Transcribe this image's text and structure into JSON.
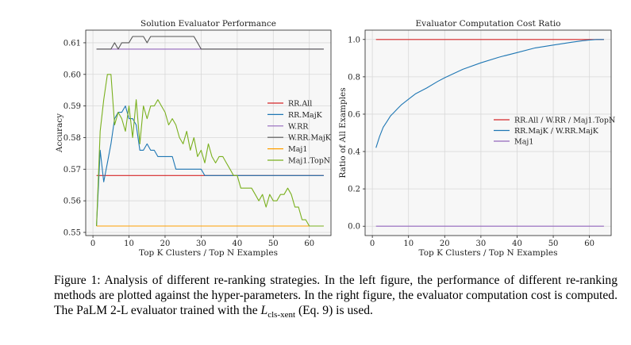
{
  "chart_data": [
    {
      "type": "line",
      "title": "Solution Evaluator Performance",
      "xlabel": "Top K Clusters / Top N Examples",
      "ylabel": "Accuracy",
      "xlim": [
        -2,
        66
      ],
      "ylim": [
        0.549,
        0.614
      ],
      "xticks": [
        0,
        10,
        20,
        30,
        40,
        50,
        60
      ],
      "yticks": [
        0.55,
        0.56,
        0.57,
        0.58,
        0.59,
        0.6,
        0.61
      ],
      "ytick_labels": [
        "0.55",
        "0.56",
        "0.57",
        "0.58",
        "0.59",
        "0.60",
        "0.61"
      ],
      "grid": true,
      "legend_position": "right",
      "series": [
        {
          "name": "RR.All",
          "color": "#d62728",
          "x": [
            1,
            64
          ],
          "y": [
            0.568,
            0.568
          ]
        },
        {
          "name": "RR.MajK",
          "color": "#1f77b4",
          "x": [
            1,
            2,
            3,
            4,
            5,
            6,
            7,
            8,
            9,
            10,
            11,
            12,
            13,
            14,
            15,
            16,
            17,
            18,
            19,
            20,
            21,
            22,
            23,
            24,
            25,
            26,
            27,
            28,
            29,
            30,
            31,
            32,
            64
          ],
          "y": [
            0.552,
            0.576,
            0.566,
            0.572,
            0.578,
            0.586,
            0.588,
            0.588,
            0.59,
            0.586,
            0.586,
            0.584,
            0.576,
            0.576,
            0.578,
            0.576,
            0.576,
            0.574,
            0.574,
            0.574,
            0.574,
            0.574,
            0.57,
            0.57,
            0.57,
            0.57,
            0.57,
            0.57,
            0.57,
            0.57,
            0.568,
            0.568,
            0.568
          ]
        },
        {
          "name": "W.RR",
          "color": "#9467bd",
          "x": [
            1,
            64
          ],
          "y": [
            0.608,
            0.608
          ]
        },
        {
          "name": "W.RR.MajK",
          "color": "#555555",
          "x": [
            1,
            2,
            3,
            4,
            5,
            6,
            7,
            8,
            9,
            10,
            11,
            12,
            13,
            14,
            15,
            16,
            17,
            18,
            19,
            20,
            21,
            22,
            23,
            24,
            25,
            26,
            27,
            28,
            29,
            30,
            31,
            32,
            64
          ],
          "y": [
            0.608,
            0.608,
            0.608,
            0.608,
            0.608,
            0.61,
            0.608,
            0.61,
            0.61,
            0.61,
            0.612,
            0.612,
            0.612,
            0.612,
            0.61,
            0.612,
            0.612,
            0.612,
            0.612,
            0.612,
            0.612,
            0.612,
            0.612,
            0.612,
            0.612,
            0.612,
            0.612,
            0.612,
            0.61,
            0.608,
            0.608,
            0.608,
            0.608
          ]
        },
        {
          "name": "Maj1",
          "color": "#ff9f00",
          "x": [
            1,
            64
          ],
          "y": [
            0.552,
            0.552
          ]
        },
        {
          "name": "Maj1.TopN",
          "color": "#7ab01e",
          "x": [
            1,
            2,
            3,
            4,
            5,
            6,
            7,
            8,
            9,
            10,
            11,
            12,
            13,
            14,
            15,
            16,
            17,
            18,
            19,
            20,
            21,
            22,
            23,
            24,
            25,
            26,
            27,
            28,
            29,
            30,
            31,
            32,
            33,
            34,
            35,
            36,
            37,
            38,
            39,
            40,
            41,
            42,
            43,
            44,
            45,
            46,
            47,
            48,
            49,
            50,
            51,
            52,
            53,
            54,
            55,
            56,
            57,
            58,
            59,
            60,
            61,
            62,
            63,
            64
          ],
          "y": [
            0.552,
            0.582,
            0.592,
            0.6,
            0.6,
            0.584,
            0.588,
            0.586,
            0.582,
            0.59,
            0.58,
            0.592,
            0.578,
            0.59,
            0.586,
            0.59,
            0.59,
            0.592,
            0.59,
            0.588,
            0.584,
            0.586,
            0.584,
            0.58,
            0.578,
            0.582,
            0.576,
            0.58,
            0.574,
            0.576,
            0.572,
            0.578,
            0.574,
            0.572,
            0.574,
            0.574,
            0.572,
            0.57,
            0.568,
            0.568,
            0.564,
            0.564,
            0.564,
            0.564,
            0.562,
            0.56,
            0.562,
            0.558,
            0.562,
            0.56,
            0.56,
            0.562,
            0.562,
            0.564,
            0.562,
            0.558,
            0.558,
            0.554,
            0.554,
            0.552,
            0.552,
            0.552,
            0.552,
            0.552
          ]
        }
      ]
    },
    {
      "type": "line",
      "title": "Evaluator Computation Cost Ratio",
      "xlabel": "Top K Clusters / Top N Examples",
      "ylabel": "Ratio of All Examples",
      "xlim": [
        -2,
        66
      ],
      "ylim": [
        -0.05,
        1.05
      ],
      "xticks": [
        0,
        10,
        20,
        30,
        40,
        50,
        60
      ],
      "yticks": [
        0.0,
        0.2,
        0.4,
        0.6,
        0.8,
        1.0
      ],
      "ytick_labels": [
        "0.0",
        "0.2",
        "0.4",
        "0.6",
        "0.8",
        "1.0"
      ],
      "grid": true,
      "legend_position": "right",
      "series": [
        {
          "name": "RR.All / W.RR / Maj1.TopN",
          "color": "#d62728",
          "x": [
            1,
            64
          ],
          "y": [
            1.0,
            1.0
          ]
        },
        {
          "name": "RR.MajK / W.RR.MajK",
          "color": "#1f77b4",
          "x": [
            1,
            2,
            3,
            4,
            5,
            6,
            7,
            8,
            10,
            12,
            15,
            18,
            20,
            25,
            30,
            35,
            40,
            45,
            50,
            55,
            58,
            60,
            62,
            64
          ],
          "y": [
            0.42,
            0.48,
            0.53,
            0.56,
            0.59,
            0.61,
            0.63,
            0.65,
            0.68,
            0.71,
            0.74,
            0.775,
            0.795,
            0.84,
            0.875,
            0.905,
            0.93,
            0.955,
            0.97,
            0.985,
            0.993,
            0.997,
            1.0,
            1.0
          ]
        },
        {
          "name": "Maj1",
          "color": "#9467bd",
          "x": [
            1,
            64
          ],
          "y": [
            0.0,
            0.0
          ]
        }
      ]
    }
  ],
  "caption": {
    "part1": "Figure 1: Analysis of different re-ranking strategies. In the left figure, the performance of different re-ranking methods are plotted against the hyper-parameters. In the right figure, the evaluator computation cost is computed. The PaLM 2-L evaluator trained with the ",
    "loss_symbol": "L",
    "loss_subscript": "cls-xent",
    "part2": " (Eq. 9) is used."
  }
}
